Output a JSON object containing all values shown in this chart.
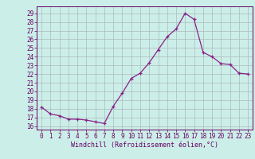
{
  "x": [
    0,
    1,
    2,
    3,
    4,
    5,
    6,
    7,
    8,
    9,
    10,
    11,
    12,
    13,
    14,
    15,
    16,
    17,
    18,
    19,
    20,
    21,
    22,
    23
  ],
  "y": [
    18.2,
    17.4,
    17.2,
    16.8,
    16.8,
    16.7,
    16.5,
    16.3,
    18.3,
    19.8,
    21.5,
    22.1,
    23.3,
    24.8,
    26.3,
    27.2,
    29.0,
    28.3,
    24.5,
    24.0,
    23.2,
    23.1,
    22.1,
    22.0
  ],
  "line_color": "#882288",
  "marker": "+",
  "bg_color": "#cceee8",
  "grid_color": "#aabbbb",
  "xlabel": "Windchill (Refroidissement éolien,°C)",
  "ylabel_ticks": [
    16,
    17,
    18,
    19,
    20,
    21,
    22,
    23,
    24,
    25,
    26,
    27,
    28,
    29
  ],
  "xlim": [
    -0.5,
    23.5
  ],
  "ylim": [
    15.6,
    29.8
  ],
  "axis_color": "#660066",
  "tick_fontsize": 5.5,
  "xlabel_fontsize": 6.0
}
